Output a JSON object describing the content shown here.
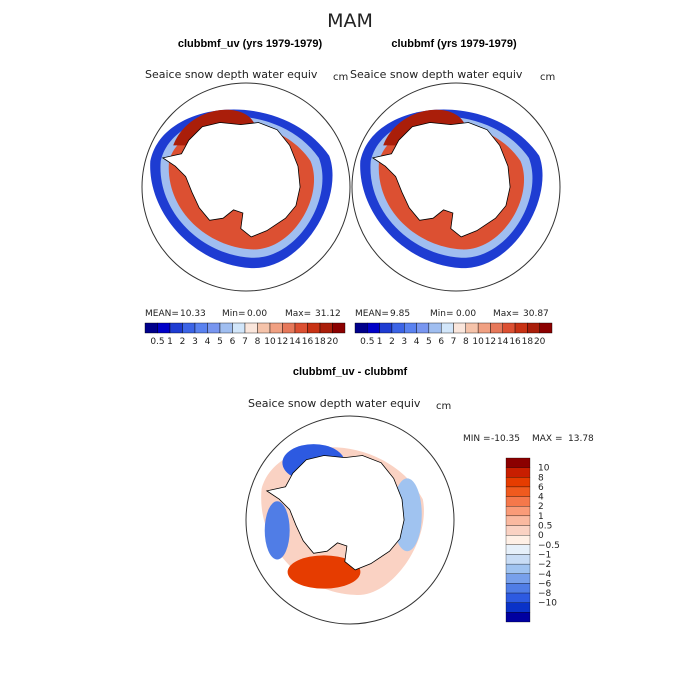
{
  "page_title": "MAM",
  "panels": [
    {
      "title": "clubbmf_uv (yrs 1979-1979)",
      "variable": "Seaice snow depth water equiv",
      "units": "cm",
      "stats": {
        "mean_label": "MEAN=",
        "mean": "10.33",
        "min_label": "Min=",
        "min": "0.00",
        "max_label": "Max=",
        "max": "31.12"
      }
    },
    {
      "title": "clubbmf (yrs 1979-1979)",
      "variable": "Seaice snow depth water equiv",
      "units": "cm",
      "stats": {
        "mean_label": "MEAN=",
        "mean": "9.85",
        "min_label": "Min=",
        "min": "0.00",
        "max_label": "Max=",
        "max": "30.87"
      }
    }
  ],
  "top_colorbar": {
    "colors": [
      "#00008b",
      "#0000c8",
      "#1e3cd2",
      "#3c64e6",
      "#5a82f0",
      "#7896f0",
      "#a0bef0",
      "#d2e6fa",
      "#fae6dc",
      "#f5c3aa",
      "#f0a082",
      "#e6785a",
      "#dc5032",
      "#c83214",
      "#aa1e0a",
      "#8b0000"
    ],
    "labels": [
      "0.5",
      "1",
      "2",
      "3",
      "4",
      "5",
      "6",
      "7",
      "8",
      "10",
      "12",
      "14",
      "16",
      "18",
      "20"
    ]
  },
  "diff_panel": {
    "title": "clubbmf_uv - clubbmf",
    "variable": "Seaice snow depth water equiv",
    "units": "cm",
    "minmax": {
      "min_label": "MIN =",
      "min": "-10.35",
      "max_label": "MAX =",
      "max": "13.78"
    }
  },
  "diff_colorbar": {
    "colors": [
      "#8b0000",
      "#c81e00",
      "#e63c00",
      "#f05a1e",
      "#f5784b",
      "#fa9b78",
      "#fab9a0",
      "#fad2c3",
      "#fff0e6",
      "#e6f0fa",
      "#c8dcf5",
      "#a0c3f0",
      "#78a0eb",
      "#507de6",
      "#2d5ae1",
      "#0a32c8",
      "#0000a0"
    ],
    "labels": [
      "10",
      "8",
      "6",
      "4",
      "2",
      "1",
      "0.5",
      "0",
      "−0.5",
      "−1",
      "−2",
      "−4",
      "−6",
      "−8",
      "−10"
    ]
  },
  "colors": {
    "coast": "#000000",
    "circle": "#333333"
  }
}
